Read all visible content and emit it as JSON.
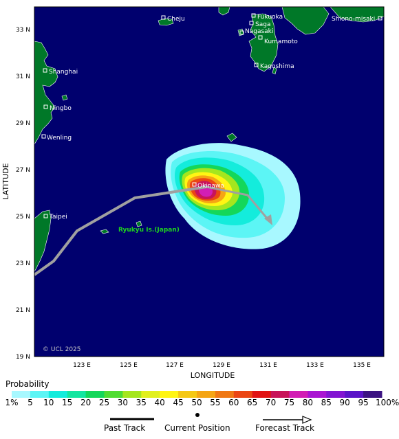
{
  "axes": {
    "ylabel": "LATITUDE",
    "xlabel": "LONGITUDE",
    "lat_ticks": [
      "33 N",
      "31 N",
      "29 N",
      "27 N",
      "25 N",
      "23 N",
      "21 N",
      "19 N"
    ],
    "lon_ticks": [
      "123 E",
      "125 E",
      "127 E",
      "129 E",
      "131 E",
      "133 E",
      "135 E"
    ]
  },
  "places": [
    {
      "name": "Cheju"
    },
    {
      "name": "Fukuoka"
    },
    {
      "name": "Saga"
    },
    {
      "name": "Nagasaki"
    },
    {
      "name": "Kumamoto"
    },
    {
      "name": "Shiono-misaki"
    },
    {
      "name": "Kagoshima"
    },
    {
      "name": "Shanghai"
    },
    {
      "name": "Ningbo"
    },
    {
      "name": "Wenling"
    },
    {
      "name": "Okinawa"
    },
    {
      "name": "Taipei"
    }
  ],
  "region_label": "Ryukyu Is.(Japan)",
  "copyright": "© UCL 2025",
  "legend": {
    "title": "Probability",
    "labels": [
      "1%",
      "5",
      "10",
      "15",
      "20",
      "25",
      "30",
      "35",
      "40",
      "45",
      "50",
      "55",
      "60",
      "65",
      "70",
      "75",
      "80",
      "85",
      "90",
      "95",
      "100%"
    ],
    "colors": [
      "#a8f8ff",
      "#5cf5f5",
      "#14ecdc",
      "#14e6a0",
      "#14d75a",
      "#50dc32",
      "#a5e61e",
      "#e1f01e",
      "#fff514",
      "#f5c814",
      "#f5a514",
      "#f07814",
      "#eb4614",
      "#e11414",
      "#c8145a",
      "#d21eb4",
      "#aa14d2",
      "#8214d2",
      "#5a14c8",
      "#3c1482"
    ]
  },
  "track_legend": {
    "past": "Past Track",
    "current": "Current Position",
    "forecast": "Forecast Track"
  },
  "colors": {
    "ocean": "#00006e",
    "land": "#007828",
    "track": "#a0a0a0",
    "label_green": "#1ed21e"
  }
}
